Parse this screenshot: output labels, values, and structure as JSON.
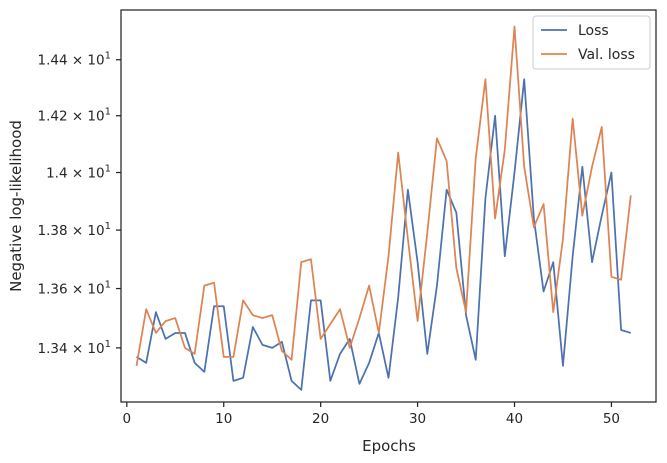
{
  "chart_data": {
    "type": "line",
    "xlabel": "Epochs",
    "ylabel": "Negative log-likelihood",
    "xlim": [
      -0.6,
      54.6
    ],
    "ylim": [
      13.22,
      14.58
    ],
    "y_scale": "log",
    "grid": false,
    "legend_placement": "top-right",
    "x_ticks": [
      {
        "value": 0,
        "label": "0"
      },
      {
        "value": 10,
        "label": "10"
      },
      {
        "value": 20,
        "label": "20"
      },
      {
        "value": 30,
        "label": "30"
      },
      {
        "value": 40,
        "label": "40"
      },
      {
        "value": 50,
        "label": "50"
      }
    ],
    "y_ticks": [
      {
        "value": 13.4,
        "mantissa": "1.34",
        "base": "10",
        "exp": "1"
      },
      {
        "value": 13.6,
        "mantissa": "1.36",
        "base": "10",
        "exp": "1"
      },
      {
        "value": 13.8,
        "mantissa": "1.38",
        "base": "10",
        "exp": "1"
      },
      {
        "value": 14.0,
        "mantissa": "1.4",
        "base": "10",
        "exp": "1"
      },
      {
        "value": 14.2,
        "mantissa": "1.42",
        "base": "10",
        "exp": "1"
      },
      {
        "value": 14.4,
        "mantissa": "1.44",
        "base": "10",
        "exp": "1"
      }
    ],
    "x": [
      1,
      2,
      3,
      4,
      5,
      6,
      7,
      8,
      9,
      10,
      11,
      12,
      13,
      14,
      15,
      16,
      17,
      18,
      19,
      20,
      21,
      22,
      23,
      24,
      25,
      26,
      27,
      28,
      29,
      30,
      31,
      32,
      33,
      34,
      35,
      36,
      37,
      38,
      39,
      40,
      41,
      42,
      43,
      44,
      45,
      46,
      47,
      48,
      49,
      50,
      51,
      52
    ],
    "series": [
      {
        "name": "Loss",
        "color": "#4c72b0",
        "values": [
          13.37,
          13.35,
          13.52,
          13.43,
          13.45,
          13.45,
          13.35,
          13.32,
          13.54,
          13.54,
          13.29,
          13.3,
          13.47,
          13.41,
          13.4,
          13.42,
          13.29,
          13.26,
          13.56,
          13.56,
          13.29,
          13.38,
          13.43,
          13.28,
          13.35,
          13.45,
          13.3,
          13.57,
          13.94,
          13.69,
          13.38,
          13.61,
          13.94,
          13.86,
          13.51,
          13.36,
          13.91,
          14.2,
          13.71,
          14.0,
          14.33,
          13.84,
          13.59,
          13.69,
          13.34,
          13.71,
          14.02,
          13.69,
          13.85,
          14.0,
          13.46,
          13.45
        ]
      },
      {
        "name": "Val. loss",
        "color": "#dd8452",
        "values": [
          13.34,
          13.53,
          13.45,
          13.49,
          13.5,
          13.4,
          13.38,
          13.61,
          13.62,
          13.37,
          13.37,
          13.56,
          13.51,
          13.5,
          13.51,
          13.39,
          13.36,
          13.69,
          13.7,
          13.43,
          13.48,
          13.53,
          13.4,
          13.5,
          13.61,
          13.45,
          13.71,
          14.07,
          13.77,
          13.49,
          13.79,
          14.12,
          14.04,
          13.67,
          13.52,
          14.05,
          14.33,
          13.84,
          14.08,
          14.52,
          14.02,
          13.81,
          13.89,
          13.52,
          13.77,
          14.19,
          13.85,
          14.02,
          14.16,
          13.64,
          13.63,
          13.92
        ]
      }
    ]
  }
}
